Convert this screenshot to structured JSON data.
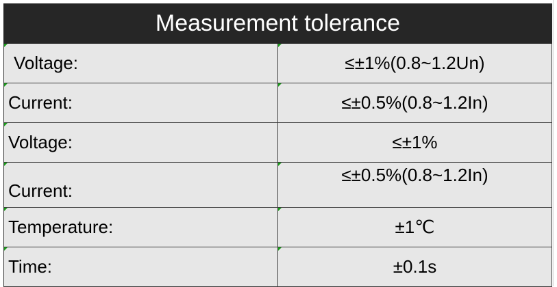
{
  "table": {
    "title": "Measurement tolerance",
    "rows": [
      {
        "label": "Voltage:",
        "value": "≤±1%(0.8~1.2Un)"
      },
      {
        "label": "Current:",
        "value": "≤±0.5%(0.8~1.2In)"
      },
      {
        "label": "Voltage:",
        "value": "≤±1%"
      },
      {
        "label": "Current:",
        "value": "≤±0.5%(0.8~1.2In)"
      },
      {
        "label": "Temperature:",
        "value": "±1℃"
      },
      {
        "label": "Time:",
        "value": "±0.1s"
      }
    ]
  },
  "colors": {
    "header_bg": "#262626",
    "header_text": "#ffffff",
    "cell_bg": "#e7e7e7",
    "border": "#3a3a3a",
    "note_flag": "#1a9a1a"
  }
}
